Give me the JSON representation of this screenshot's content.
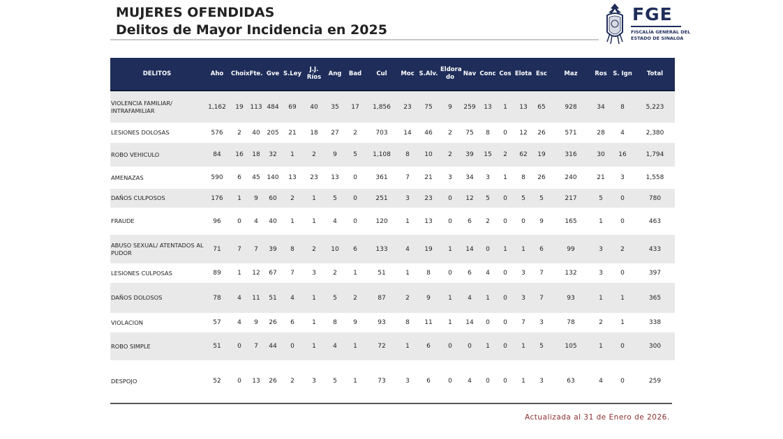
{
  "header": {
    "title": "MUJERES OFENDIDAS",
    "subtitle": "Delitos de Mayor Incidencia en 2025"
  },
  "logo": {
    "abbr": "FGE",
    "line1": "FISCALÍA GENERAL DEL",
    "line2": "ESTADO DE SINALOA",
    "color": "#1f2d5a"
  },
  "table": {
    "columns": [
      "DELITOS",
      "Aho",
      "Choix",
      "Fte.",
      "Gve",
      "S.Ley",
      "J.J. Ríos",
      "Ang",
      "Bad",
      "Cul",
      "Moc",
      "S.Alv.",
      "Eldora do",
      "Nav",
      "Conc",
      "Cos",
      "Elota",
      "Esc",
      "Maz",
      "Ros",
      "S. Ign",
      "Total"
    ],
    "rows": [
      [
        "VIOLENCIA FAMILIAR/ INTRAFAMILIAR",
        "1,162",
        "19",
        "113",
        "484",
        "69",
        "40",
        "35",
        "17",
        "1,856",
        "23",
        "75",
        "9",
        "259",
        "13",
        "1",
        "13",
        "65",
        "928",
        "34",
        "8",
        "5,223"
      ],
      [
        "LESIONES DOLOSAS",
        "576",
        "2",
        "40",
        "205",
        "21",
        "18",
        "27",
        "2",
        "703",
        "14",
        "46",
        "2",
        "75",
        "8",
        "0",
        "12",
        "26",
        "571",
        "28",
        "4",
        "2,380"
      ],
      [
        "ROBO VEHICULO",
        "84",
        "16",
        "18",
        "32",
        "1",
        "2",
        "9",
        "5",
        "1,108",
        "8",
        "10",
        "2",
        "39",
        "15",
        "2",
        "62",
        "19",
        "316",
        "30",
        "16",
        "1,794"
      ],
      [
        "AMENAZAS",
        "590",
        "6",
        "45",
        "140",
        "13",
        "23",
        "13",
        "0",
        "361",
        "7",
        "21",
        "3",
        "34",
        "3",
        "1",
        "8",
        "26",
        "240",
        "21",
        "3",
        "1,558"
      ],
      [
        "DAÑOS CULPOSOS",
        "176",
        "1",
        "9",
        "60",
        "2",
        "1",
        "5",
        "0",
        "251",
        "3",
        "23",
        "0",
        "12",
        "5",
        "0",
        "5",
        "5",
        "217",
        "5",
        "0",
        "780"
      ],
      [
        "FRAUDE",
        "96",
        "0",
        "4",
        "40",
        "1",
        "1",
        "4",
        "0",
        "120",
        "1",
        "13",
        "0",
        "6",
        "2",
        "0",
        "0",
        "9",
        "165",
        "1",
        "0",
        "463"
      ],
      [
        "ABUSO SEXUAL/ ATENTADOS AL PUDOR",
        "71",
        "7",
        "7",
        "39",
        "8",
        "2",
        "10",
        "6",
        "133",
        "4",
        "19",
        "1",
        "14",
        "0",
        "1",
        "1",
        "6",
        "99",
        "3",
        "2",
        "433"
      ],
      [
        "LESIONES CULPOSAS",
        "89",
        "1",
        "12",
        "67",
        "7",
        "3",
        "2",
        "1",
        "51",
        "1",
        "8",
        "0",
        "6",
        "4",
        "0",
        "3",
        "7",
        "132",
        "3",
        "0",
        "397"
      ],
      [
        "DAÑOS DOLOSOS",
        "78",
        "4",
        "11",
        "51",
        "4",
        "1",
        "5",
        "2",
        "87",
        "2",
        "9",
        "1",
        "4",
        "1",
        "0",
        "3",
        "7",
        "93",
        "1",
        "1",
        "365"
      ],
      [
        "VIOLACION",
        "57",
        "4",
        "9",
        "26",
        "6",
        "1",
        "8",
        "9",
        "93",
        "8",
        "11",
        "1",
        "14",
        "0",
        "0",
        "7",
        "3",
        "78",
        "2",
        "1",
        "338"
      ],
      [
        "ROBO SIMPLE",
        "51",
        "0",
        "7",
        "44",
        "0",
        "1",
        "4",
        "1",
        "72",
        "1",
        "6",
        "0",
        "0",
        "1",
        "0",
        "1",
        "5",
        "105",
        "1",
        "0",
        "300"
      ],
      [
        "DESPOJO",
        "52",
        "0",
        "13",
        "26",
        "2",
        "3",
        "5",
        "1",
        "73",
        "3",
        "6",
        "0",
        "4",
        "0",
        "0",
        "1",
        "3",
        "63",
        "4",
        "0",
        "259"
      ]
    ]
  },
  "footer": {
    "updated": "Actualizada  al 31 de Enero de 2026."
  }
}
